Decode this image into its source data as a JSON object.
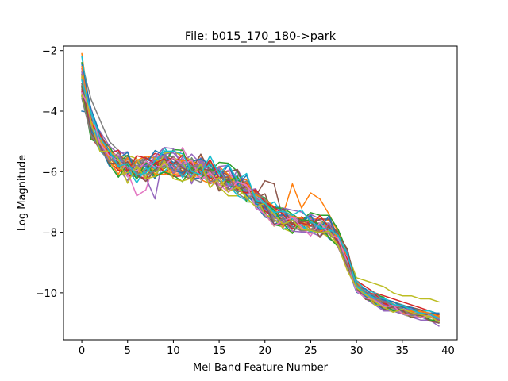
{
  "chart_data": {
    "type": "line",
    "title": "File: b015_170_180->park",
    "xlabel": "Mel Band Feature Number",
    "ylabel": "Log Magnitude",
    "xlim": [
      -2,
      41
    ],
    "ylim": [
      -11.55,
      -1.85
    ],
    "xticks": [
      0,
      5,
      10,
      15,
      20,
      25,
      30,
      35,
      40
    ],
    "yticks": [
      -10,
      -8,
      -6,
      -4,
      -2
    ],
    "ytick_labels": [
      "−10",
      "−8",
      "−6",
      "−4",
      "−2"
    ],
    "grid": false,
    "legend": "none",
    "palette": [
      "#1f77b4",
      "#ff7f0e",
      "#2ca02c",
      "#d62728",
      "#9467bd",
      "#8c564b",
      "#e377c2",
      "#7f7f7f",
      "#bcbd22",
      "#17becf"
    ],
    "base_curve": [
      -3.0,
      -4.4,
      -5.0,
      -5.4,
      -5.7,
      -5.85,
      -5.9,
      -5.85,
      -5.75,
      -5.7,
      -5.75,
      -5.8,
      -5.85,
      -5.9,
      -6.0,
      -6.1,
      -6.25,
      -6.35,
      -6.55,
      -6.85,
      -7.15,
      -7.4,
      -7.55,
      -7.6,
      -7.65,
      -7.7,
      -7.75,
      -7.8,
      -8.2,
      -8.9,
      -9.8,
      -10.05,
      -10.2,
      -10.35,
      -10.45,
      -10.55,
      -10.62,
      -10.68,
      -10.75,
      -10.85
    ],
    "series_count": 40,
    "series": [
      {
        "values": [
          -4.0,
          -4.05,
          -5.0,
          -5.3,
          -5.8,
          -5.9,
          -6.2,
          -6.0,
          -5.8,
          -5.6,
          -5.7,
          -5.9,
          -6.0,
          -6.1,
          -6.1,
          -6.0,
          -6.3,
          -6.4,
          -6.7,
          -7.1,
          -7.5,
          -7.6,
          -7.7,
          -7.6,
          -7.7,
          -7.8,
          -7.8,
          -7.9,
          -8.3,
          -9.0,
          -9.9,
          -10.1,
          -10.3,
          -10.4,
          -10.6,
          -10.7,
          -10.8,
          -10.8,
          -10.9,
          -11.0
        ]
      },
      {
        "values": [
          -2.1,
          -4.3,
          -4.8,
          -5.2,
          -5.6,
          -5.8,
          -5.9,
          -5.9,
          -5.5,
          -5.2,
          -5.6,
          -5.7,
          -5.8,
          -5.9,
          -6.1,
          -6.2,
          -6.3,
          -6.4,
          -6.5,
          -6.9,
          -7.3,
          -7.5,
          -7.4,
          -6.4,
          -7.2,
          -6.7,
          -6.9,
          -7.4,
          -8.0,
          -8.8,
          -9.7,
          -10.0,
          -10.1,
          -10.3,
          -10.4,
          -10.5,
          -10.6,
          -10.6,
          -10.7,
          -10.8
        ]
      },
      {
        "values": [
          -3.3,
          -4.5,
          -5.2,
          -5.5,
          -5.9,
          -6.0,
          -6.0,
          -5.8,
          -6.0,
          -5.9,
          -5.7,
          -5.8,
          -5.9,
          -6.0,
          -6.1,
          -6.2,
          -6.3,
          -6.2,
          -6.6,
          -6.8,
          -7.2,
          -7.3,
          -7.5,
          -7.6,
          -7.6,
          -7.7,
          -7.6,
          -7.8,
          -8.2,
          -8.9,
          -9.8,
          -10.1,
          -10.2,
          -10.4,
          -10.5,
          -10.6,
          -10.7,
          -10.7,
          -10.8,
          -10.9
        ]
      },
      {
        "values": [
          -2.9,
          -4.2,
          -4.9,
          -5.3,
          -5.5,
          -5.6,
          -5.7,
          -5.6,
          -5.4,
          -5.5,
          -5.6,
          -5.6,
          -5.7,
          -5.8,
          -5.9,
          -6.0,
          -6.1,
          -6.2,
          -6.4,
          -6.7,
          -7.0,
          -7.3,
          -7.5,
          -7.6,
          -7.7,
          -7.6,
          -7.8,
          -7.8,
          -8.1,
          -8.8,
          -9.6,
          -9.8,
          -10.0,
          -10.1,
          -10.2,
          -10.3,
          -10.4,
          -10.5,
          -10.6,
          -10.7
        ]
      },
      {
        "values": [
          -2.6,
          -4.7,
          -5.3,
          -5.1,
          -5.9,
          -6.3,
          -5.6,
          -6.2,
          -6.9,
          -5.3,
          -6.1,
          -5.5,
          -6.4,
          -5.7,
          -6.2,
          -5.9,
          -6.5,
          -6.1,
          -6.4,
          -7.2,
          -7.4,
          -7.2,
          -7.7,
          -7.5,
          -7.8,
          -7.6,
          -7.9,
          -7.7,
          -8.3,
          -9.1,
          -9.9,
          -10.2,
          -10.4,
          -10.6,
          -10.6,
          -10.7,
          -10.8,
          -10.9,
          -10.9,
          -11.1
        ]
      },
      {
        "values": [
          -3.1,
          -4.4,
          -4.9,
          -5.4,
          -5.6,
          -5.9,
          -5.8,
          -5.8,
          -5.9,
          -5.6,
          -5.8,
          -5.9,
          -5.8,
          -6.0,
          -6.1,
          -6.0,
          -6.1,
          -6.4,
          -6.6,
          -6.8,
          -6.3,
          -6.4,
          -7.6,
          -7.5,
          -7.6,
          -7.7,
          -7.7,
          -7.8,
          -8.2,
          -8.9,
          -9.8,
          -10.0,
          -10.1,
          -10.3,
          -10.4,
          -10.5,
          -10.6,
          -10.7,
          -10.8,
          -10.9
        ]
      },
      {
        "values": [
          -3.2,
          -4.6,
          -5.1,
          -5.5,
          -5.6,
          -6.0,
          -6.8,
          -6.6,
          -5.6,
          -5.5,
          -5.9,
          -5.2,
          -5.8,
          -5.9,
          -6.1,
          -6.2,
          -6.2,
          -6.3,
          -6.5,
          -6.9,
          -7.3,
          -7.5,
          -7.6,
          -7.7,
          -8.0,
          -7.9,
          -7.8,
          -7.9,
          -8.3,
          -9.0,
          -9.9,
          -10.1,
          -10.3,
          -10.4,
          -10.5,
          -10.6,
          -10.7,
          -10.6,
          -10.7,
          -10.8
        ]
      },
      {
        "values": [
          -2.4,
          -3.6,
          -4.3,
          -5.0,
          -5.3,
          -5.5,
          -5.7,
          -5.6,
          -5.5,
          -5.6,
          -5.7,
          -5.7,
          -5.8,
          -5.9,
          -6.0,
          -6.1,
          -6.2,
          -6.3,
          -6.5,
          -6.8,
          -7.1,
          -7.3,
          -7.5,
          -7.6,
          -7.6,
          -7.7,
          -7.7,
          -7.7,
          -8.1,
          -8.8,
          -9.7,
          -9.9,
          -10.1,
          -10.2,
          -10.3,
          -10.4,
          -10.5,
          -10.6,
          -10.7,
          -10.8
        ]
      },
      {
        "values": [
          -2.7,
          -4.5,
          -5.0,
          -5.4,
          -5.8,
          -5.9,
          -6.2,
          -6.0,
          -5.9,
          -5.8,
          -5.5,
          -5.9,
          -5.9,
          -5.6,
          -6.0,
          -6.5,
          -6.8,
          -6.8,
          -6.6,
          -6.9,
          -7.4,
          -7.8,
          -7.5,
          -7.6,
          -7.7,
          -7.7,
          -7.8,
          -7.7,
          -8.2,
          -8.7,
          -9.5,
          -9.6,
          -9.7,
          -9.8,
          -10.0,
          -10.1,
          -10.1,
          -10.2,
          -10.2,
          -10.3
        ]
      },
      {
        "values": [
          -2.2,
          -4.2,
          -4.8,
          -5.3,
          -5.7,
          -5.8,
          -6.1,
          -6.0,
          -5.8,
          -5.2,
          -5.6,
          -5.8,
          -5.9,
          -6.1,
          -6.4,
          -6.3,
          -6.5,
          -6.4,
          -6.6,
          -6.9,
          -7.2,
          -7.0,
          -7.4,
          -7.6,
          -7.6,
          -7.7,
          -7.8,
          -8.0,
          -8.3,
          -8.8,
          -9.6,
          -9.9,
          -10.0,
          -10.2,
          -10.3,
          -10.4,
          -10.5,
          -10.6,
          -10.6,
          -10.7
        ]
      }
    ]
  }
}
